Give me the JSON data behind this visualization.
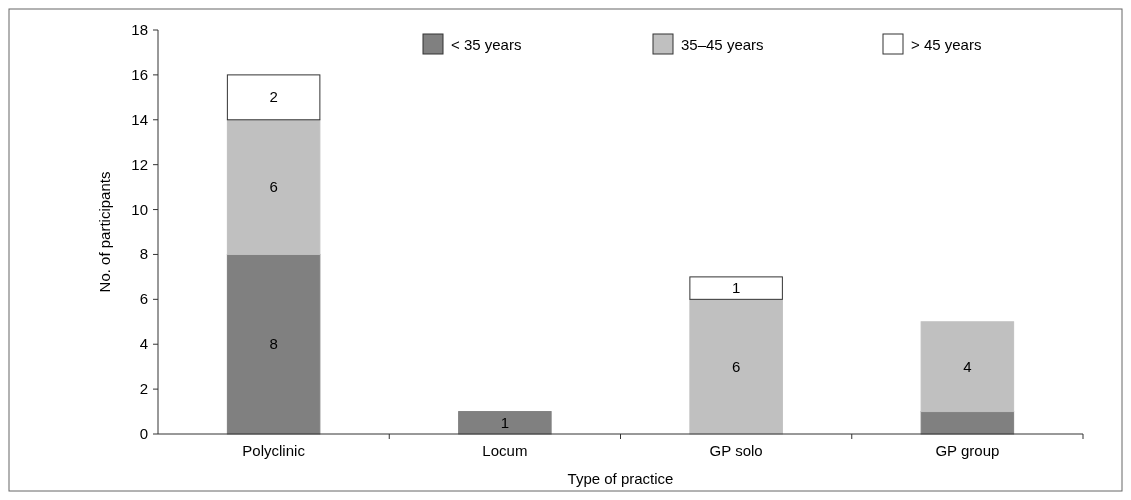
{
  "chart_data": {
    "type": "bar",
    "stacked": true,
    "xlabel": "Type of practice",
    "ylabel": "No. of participants",
    "categories": [
      "Polyclinic",
      "Locum",
      "GP solo",
      "GP group"
    ],
    "series": [
      {
        "name": "< 35 years",
        "color": "#808080",
        "values": [
          8,
          1,
          0,
          1
        ],
        "value_labels": [
          "8",
          "1",
          null,
          null
        ]
      },
      {
        "name": "35–45 years",
        "color": "#c0c0c0",
        "values": [
          6,
          0,
          6,
          4
        ],
        "value_labels": [
          "6",
          null,
          "6",
          "4"
        ]
      },
      {
        "name": "> 45 years",
        "color": "#ffffff",
        "values": [
          2,
          0,
          1,
          0
        ],
        "value_labels": [
          "2",
          null,
          "1",
          null
        ]
      }
    ],
    "ylim": [
      0,
      18
    ],
    "yticks": [
      0,
      2,
      4,
      6,
      8,
      10,
      12,
      14,
      16,
      18
    ],
    "legend": "top right",
    "grid": false
  }
}
